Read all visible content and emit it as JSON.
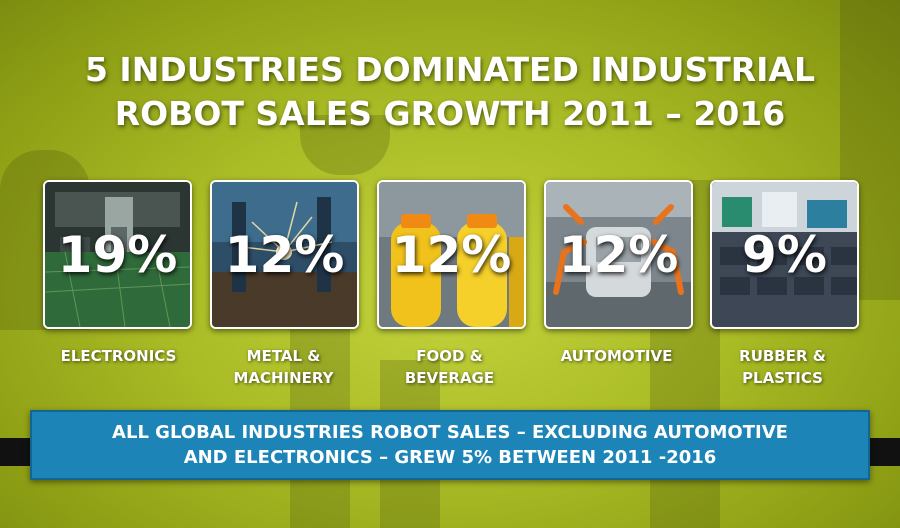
{
  "title": {
    "line1": "5 INDUSTRIES DOMINATED INDUSTRIAL",
    "line2": "ROBOT SALES GROWTH 2011 – 2016"
  },
  "industries": [
    {
      "name": "ELECTRONICS",
      "name_line2": "",
      "percent": "19%",
      "image": "circuit-board-machine"
    },
    {
      "name": "METAL &",
      "name_line2": "MACHINERY",
      "percent": "12%",
      "image": "metal-cutting-sparks"
    },
    {
      "name": "FOOD &",
      "name_line2": "BEVERAGE",
      "percent": "12%",
      "image": "juice-bottles"
    },
    {
      "name": "AUTOMOTIVE",
      "name_line2": "",
      "percent": "12%",
      "image": "car-assembly-robots"
    },
    {
      "name": "RUBBER &",
      "name_line2": "PLASTICS",
      "percent": "9%",
      "image": "plastic-crates"
    }
  ],
  "banner": {
    "line1": "ALL GLOBAL INDUSTRIES ROBOT SALES – EXCLUDING AUTOMOTIVE",
    "line2": "AND ELECTRONICS – GREW 5% BETWEEN 2011 -2016",
    "color": "#1d84b8"
  },
  "colors": {
    "background": "#a9bb25",
    "text": "#ffffff",
    "ribbon": "#111111"
  }
}
